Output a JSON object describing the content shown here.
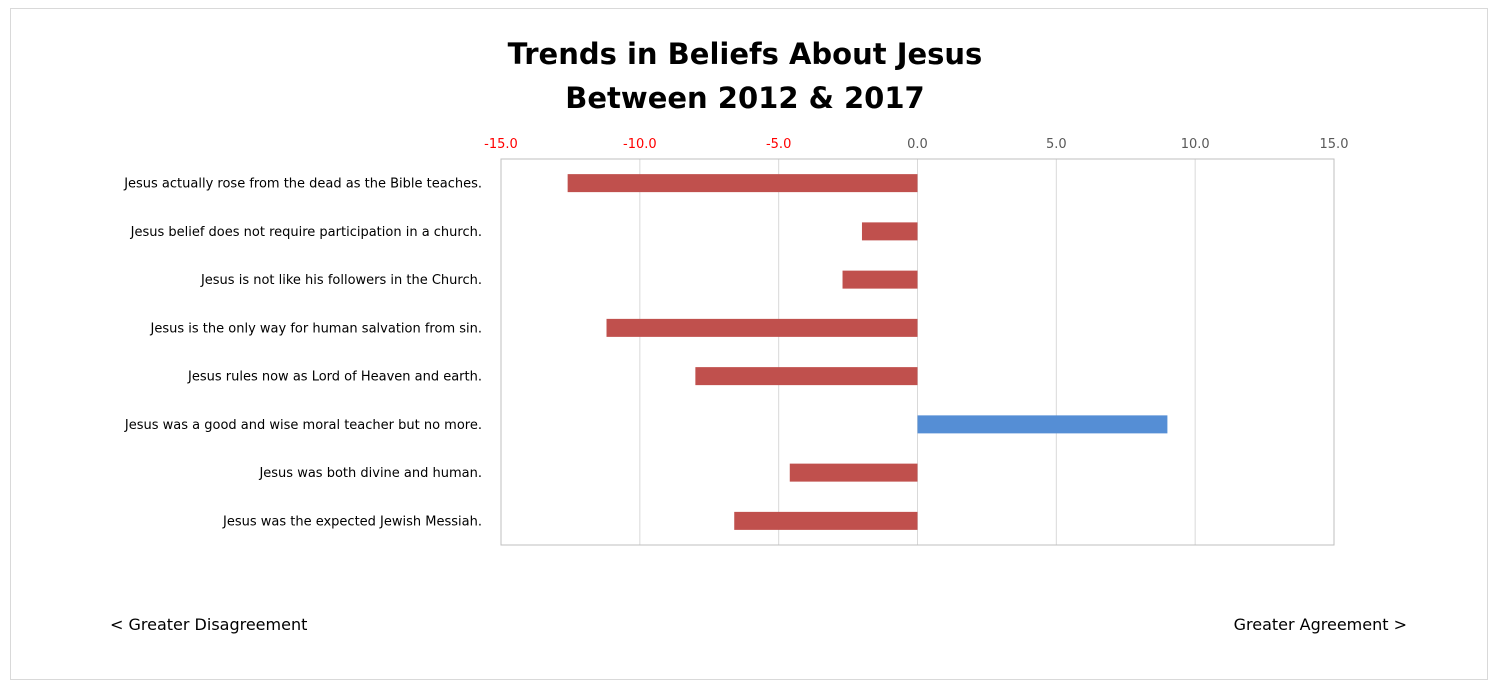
{
  "chart_data": {
    "type": "bar",
    "orientation": "horizontal",
    "title_lines": [
      "Trends in Beliefs About Jesus",
      "Between 2012 & 2017"
    ],
    "categories": [
      "Jesus actually rose from the dead as the Bible teaches.",
      "Jesus belief does not require participation in a church.",
      "Jesus is not like his followers in the Church.",
      "Jesus is the only way for human salvation from sin.",
      "Jesus rules now as Lord of Heaven and earth.",
      "Jesus was a good and wise moral teacher but no more.",
      "Jesus was both divine and human.",
      "Jesus was the expected Jewish Messiah."
    ],
    "values": [
      -12.6,
      -2.0,
      -2.7,
      -11.2,
      -8.0,
      9.0,
      -4.6,
      -6.6
    ],
    "xlim": [
      -15,
      15
    ],
    "ticks": [
      -15,
      -10,
      -5,
      0,
      5,
      10,
      15
    ],
    "tick_labels": [
      "-15.0",
      "-10.0",
      "-5.0",
      "0.0",
      "5.0",
      "10.0",
      "15.0"
    ],
    "axis_position": "top",
    "grid": true,
    "negative_color": "#c0504d",
    "positive_color": "#558ed5",
    "negative_tick_color": "#ff0000",
    "positive_tick_color": "#595959"
  },
  "annotations": {
    "left": "< Greater Disagreement",
    "right": "Greater Agreement >"
  }
}
